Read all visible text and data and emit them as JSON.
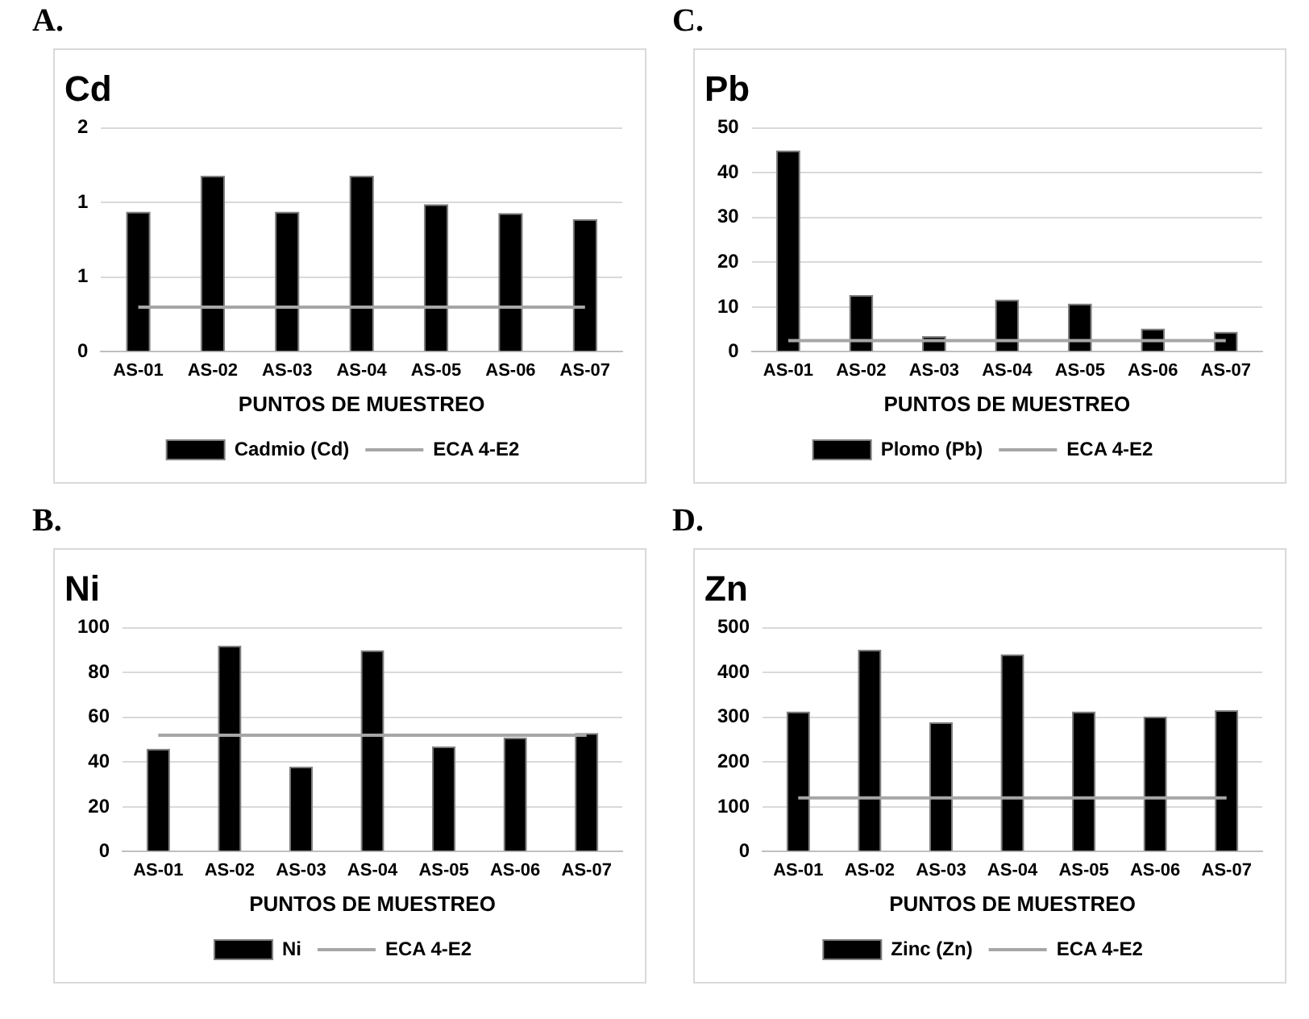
{
  "chart_data": [
    {
      "type": "bar",
      "title": "Cd",
      "xlabel": "PUNTOS DE MUESTREO",
      "annotations": [
        "A."
      ],
      "categories": [
        "AS-01",
        "AS-02",
        "AS-03",
        "AS-04",
        "AS-05",
        "AS-06",
        "AS-07"
      ],
      "series": [
        {
          "name": "Cadmio (Cd)",
          "color": "#000000",
          "values": [
            0.94,
            1.18,
            0.94,
            1.18,
            0.99,
            0.93,
            0.89
          ]
        },
        {
          "name": "ECA 4-E2",
          "type": "line",
          "color": "#a6a6a6",
          "values": [
            0.3,
            0.3,
            0.3,
            0.3,
            0.3,
            0.3,
            0.3
          ]
        }
      ],
      "ylim": [
        0,
        1.5
      ],
      "yticks": [
        0,
        {
          "value": 0.5,
          "label": "1"
        },
        {
          "value": 1,
          "label": "1"
        },
        {
          "value": 1.5,
          "label": "2"
        }
      ],
      "grid": "y",
      "legend": "bottom"
    },
    {
      "type": "bar",
      "title": "Pb",
      "xlabel": "PUNTOS DE MUESTREO",
      "annotations": [
        "C."
      ],
      "categories": [
        "AS-01",
        "AS-02",
        "AS-03",
        "AS-04",
        "AS-05",
        "AS-06",
        "AS-07"
      ],
      "series": [
        {
          "name": "Plomo (Pb)",
          "color": "#000000",
          "values": [
            45,
            12.7,
            3.5,
            11.7,
            10.8,
            5.2,
            4.5
          ]
        },
        {
          "name": "ECA 4-E2",
          "type": "line",
          "color": "#a6a6a6",
          "values": [
            2.5,
            2.5,
            2.5,
            2.5,
            2.5,
            2.5,
            2.5
          ]
        }
      ],
      "ylim": [
        0,
        50
      ],
      "yticks": [
        0,
        10,
        20,
        30,
        40,
        50
      ],
      "grid": "y",
      "legend": "bottom"
    },
    {
      "type": "bar",
      "title": "Ni",
      "xlabel": "PUNTOS DE MUESTREO",
      "annotations": [
        "B."
      ],
      "categories": [
        "AS-01",
        "AS-02",
        "AS-03",
        "AS-04",
        "AS-05",
        "AS-06",
        "AS-07"
      ],
      "series": [
        {
          "name": "Ni",
          "color": "#000000",
          "values": [
            46,
            92,
            38,
            90,
            47,
            51,
            53
          ]
        },
        {
          "name": "ECA 4-E2",
          "type": "line",
          "color": "#a6a6a6",
          "values": [
            52,
            52,
            52,
            52,
            52,
            52,
            52
          ]
        }
      ],
      "ylim": [
        0,
        100
      ],
      "yticks": [
        0,
        20,
        40,
        60,
        80,
        100
      ],
      "grid": "y",
      "legend": "bottom"
    },
    {
      "type": "bar",
      "title": "Zn",
      "xlabel": "PUNTOS DE MUESTREO",
      "annotations": [
        "D."
      ],
      "categories": [
        "AS-01",
        "AS-02",
        "AS-03",
        "AS-04",
        "AS-05",
        "AS-06",
        "AS-07"
      ],
      "series": [
        {
          "name": "Zinc (Zn)",
          "color": "#000000",
          "values": [
            313,
            451,
            289,
            441,
            313,
            302,
            316
          ]
        },
        {
          "name": "ECA 4-E2",
          "type": "line",
          "color": "#a6a6a6",
          "values": [
            120,
            120,
            120,
            120,
            120,
            120,
            120
          ]
        }
      ],
      "ylim": [
        0,
        500
      ],
      "yticks": [
        0,
        100,
        200,
        300,
        400,
        500
      ],
      "grid": "y",
      "legend": "bottom"
    }
  ]
}
